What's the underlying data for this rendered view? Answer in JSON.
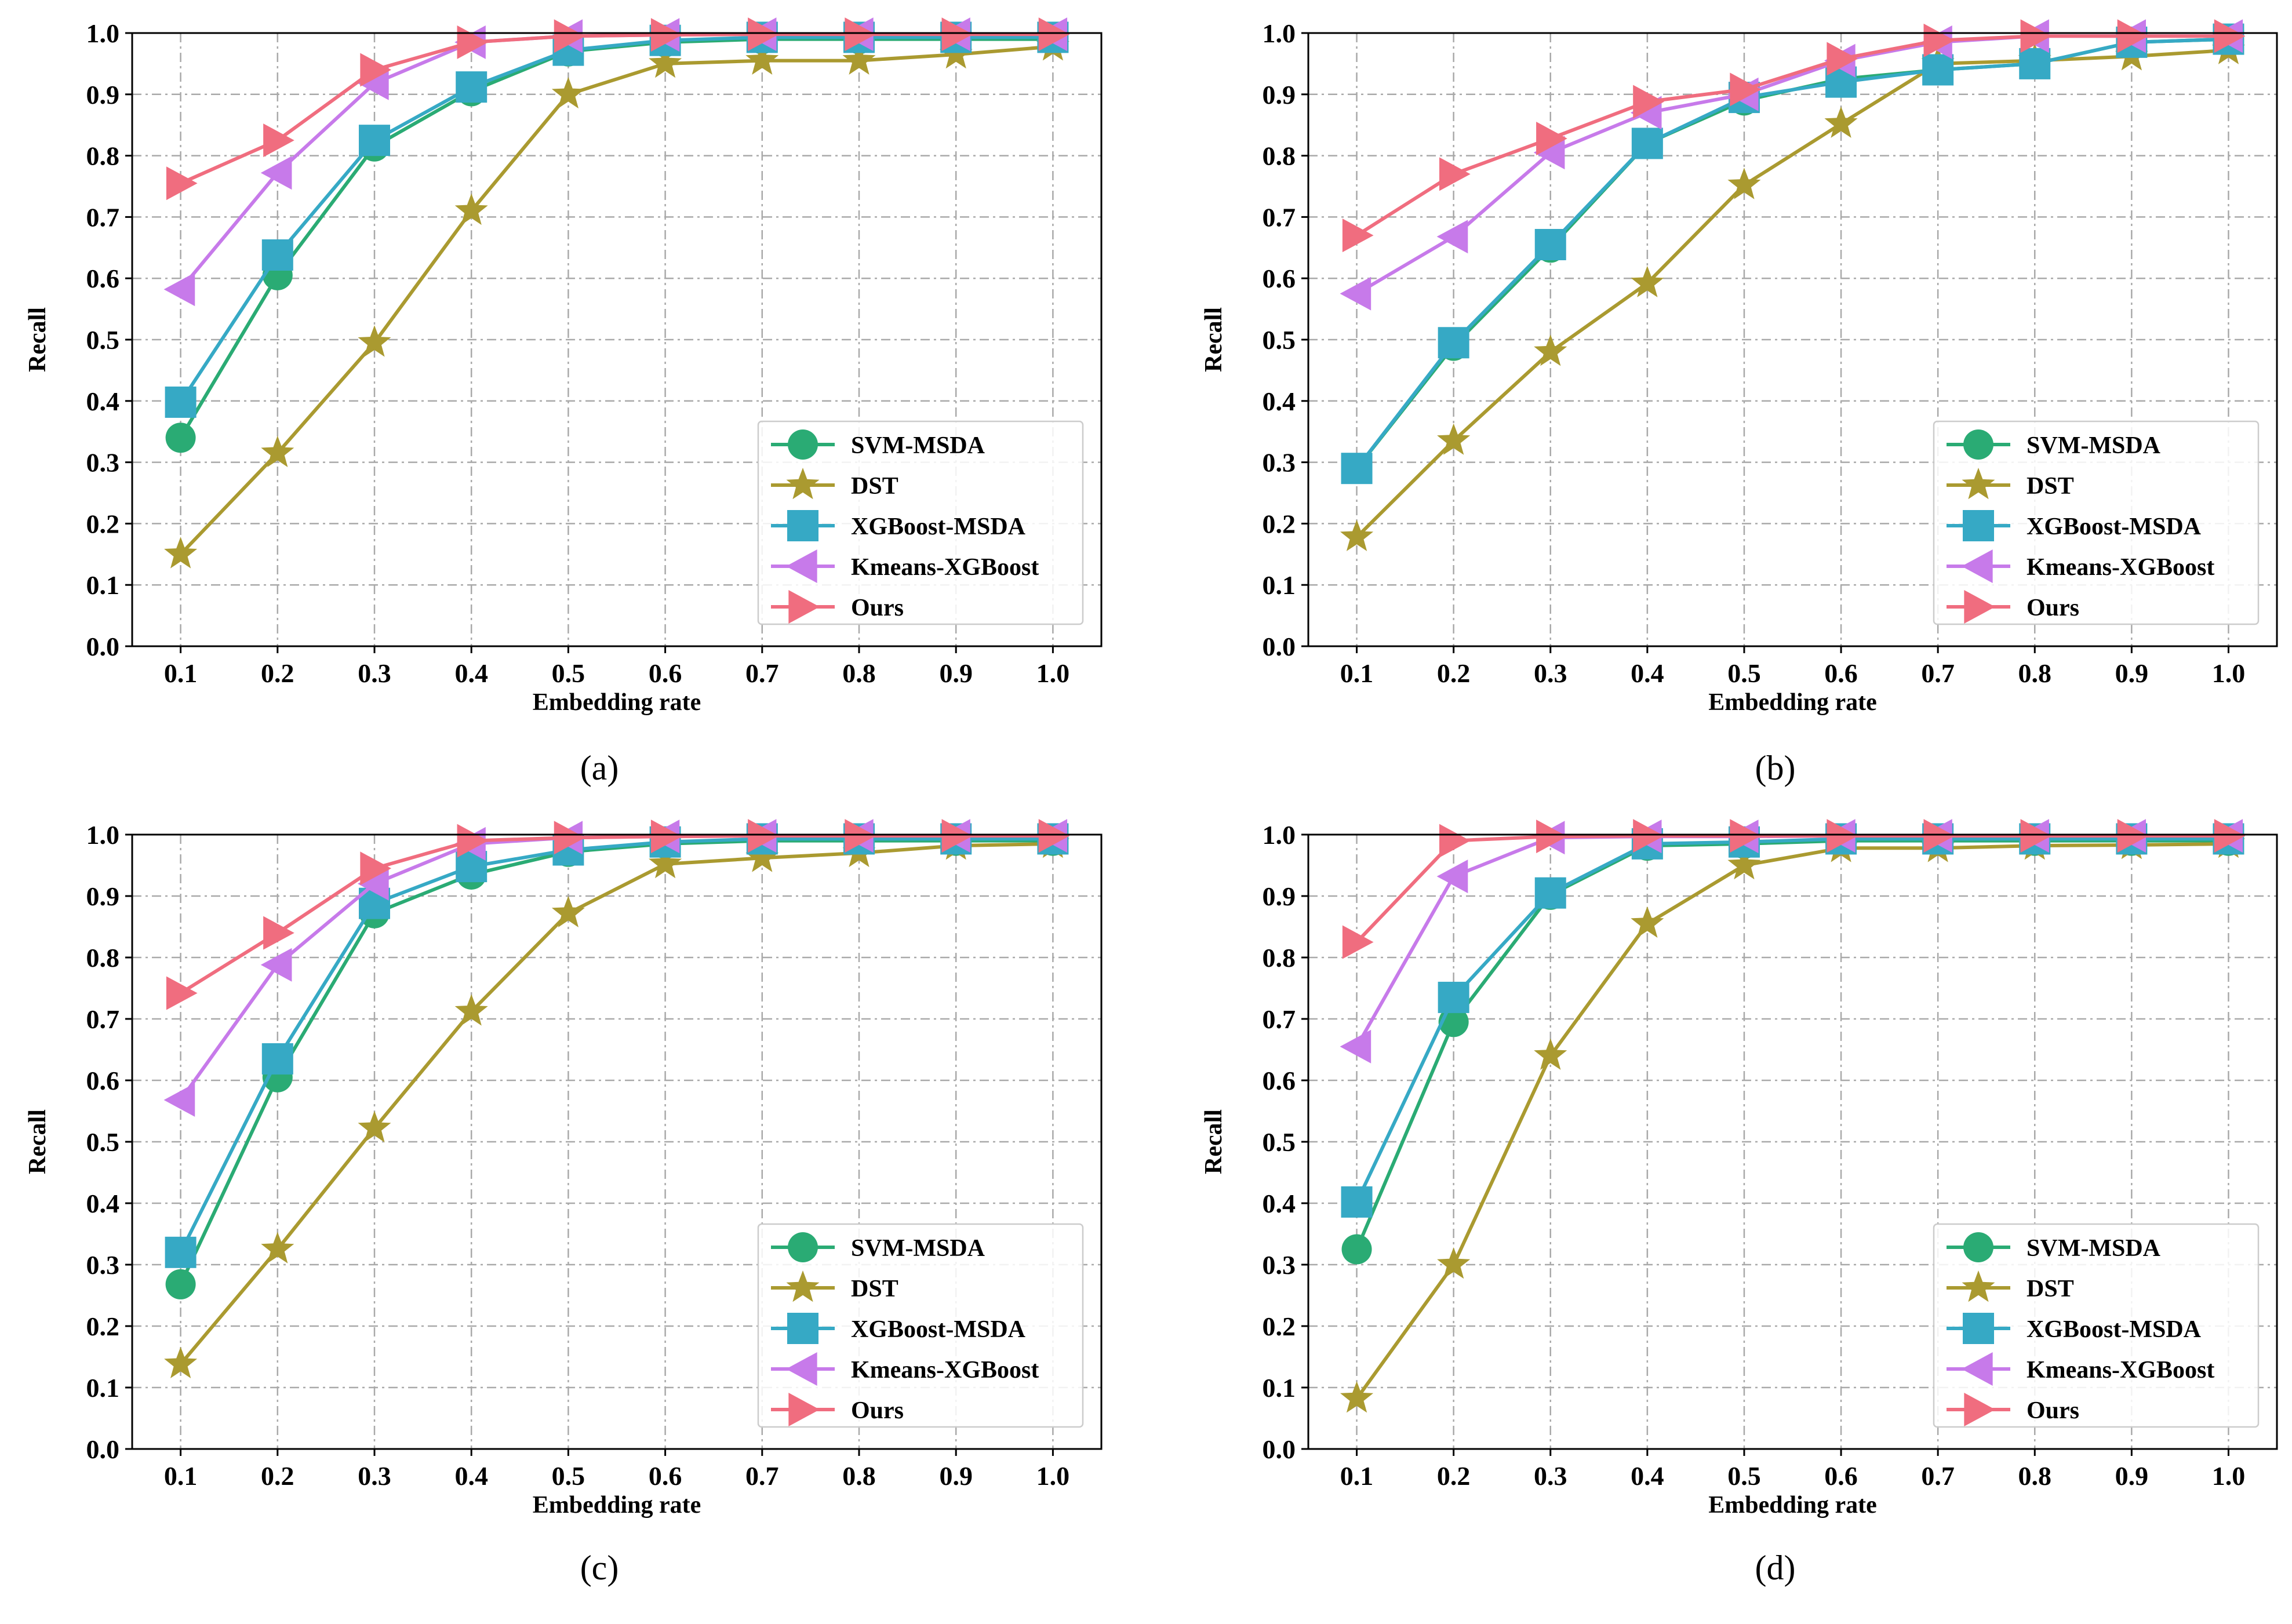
{
  "colors": {
    "SVM-MSDA": "#2aab74",
    "DST": "#aa9a30",
    "XGBoost-MSDA": "#36a9c5",
    "Kmeans-XGBoost": "#c77aea",
    "Ours": "#f06d7f"
  },
  "markers": {
    "SVM-MSDA": "circle",
    "DST": "star",
    "XGBoost-MSDA": "square",
    "Kmeans-XGBoost": "triangle-left",
    "Ours": "triangle-right"
  },
  "chart_data": [
    {
      "caption": "(a)",
      "type": "line",
      "xlabel": "Embedding rate",
      "ylabel": "Recall",
      "x": [
        0.1,
        0.2,
        0.3,
        0.4,
        0.5,
        0.6,
        0.7,
        0.8,
        0.9,
        1.0
      ],
      "x_tick_labels": [
        "0.1",
        "0.2",
        "0.3",
        "0.4",
        "0.5",
        "0.6",
        "0.7",
        "0.8",
        "0.9",
        "1.0"
      ],
      "y_tick_labels": [
        "0.0",
        "0.1",
        "0.2",
        "0.3",
        "0.4",
        "0.5",
        "0.6",
        "0.7",
        "0.8",
        "0.9",
        "1.0"
      ],
      "xlim": [
        0.05,
        1.05
      ],
      "ylim": [
        0.0,
        1.0
      ],
      "grid": true,
      "legend_position": "lower-right",
      "series": [
        {
          "name": "SVM-MSDA",
          "values": [
            0.34,
            0.605,
            0.815,
            0.905,
            0.97,
            0.985,
            0.99,
            0.99,
            0.99,
            0.99
          ]
        },
        {
          "name": "DST",
          "values": [
            0.15,
            0.315,
            0.495,
            0.71,
            0.9,
            0.95,
            0.955,
            0.955,
            0.965,
            0.978
          ]
        },
        {
          "name": "XGBoost-MSDA",
          "values": [
            0.398,
            0.638,
            0.825,
            0.912,
            0.972,
            0.988,
            0.993,
            0.993,
            0.993,
            0.993
          ]
        },
        {
          "name": "Kmeans-XGBoost",
          "values": [
            0.582,
            0.772,
            0.918,
            0.985,
            0.995,
            0.997,
            0.998,
            0.998,
            0.998,
            0.998
          ]
        },
        {
          "name": "Ours",
          "values": [
            0.755,
            0.825,
            0.94,
            0.985,
            0.995,
            0.997,
            0.998,
            0.998,
            0.998,
            0.998
          ]
        }
      ]
    },
    {
      "caption": "(b)",
      "type": "line",
      "xlabel": "Embedding rate",
      "ylabel": "Recall",
      "x": [
        0.1,
        0.2,
        0.3,
        0.4,
        0.5,
        0.6,
        0.7,
        0.8,
        0.9,
        1.0
      ],
      "x_tick_labels": [
        "0.1",
        "0.2",
        "0.3",
        "0.4",
        "0.5",
        "0.6",
        "0.7",
        "0.8",
        "0.9",
        "1.0"
      ],
      "y_tick_labels": [
        "0.0",
        "0.1",
        "0.2",
        "0.3",
        "0.4",
        "0.5",
        "0.6",
        "0.7",
        "0.8",
        "0.9",
        "1.0"
      ],
      "xlim": [
        0.05,
        1.05
      ],
      "ylim": [
        0.0,
        1.0
      ],
      "grid": true,
      "legend_position": "lower-right",
      "series": [
        {
          "name": "SVM-MSDA",
          "values": [
            0.29,
            0.49,
            0.65,
            0.82,
            0.89,
            0.925,
            0.94,
            0.95,
            0.985,
            0.99
          ]
        },
        {
          "name": "DST",
          "values": [
            0.178,
            0.335,
            0.48,
            0.592,
            0.752,
            0.852,
            0.95,
            0.955,
            0.962,
            0.972
          ]
        },
        {
          "name": "XGBoost-MSDA",
          "values": [
            0.29,
            0.495,
            0.655,
            0.82,
            0.895,
            0.92,
            0.94,
            0.95,
            0.985,
            0.99
          ]
        },
        {
          "name": "Kmeans-XGBoost",
          "values": [
            0.575,
            0.668,
            0.805,
            0.87,
            0.9,
            0.955,
            0.985,
            0.995,
            0.995,
            0.995
          ]
        },
        {
          "name": "Ours",
          "values": [
            0.67,
            0.77,
            0.828,
            0.888,
            0.908,
            0.958,
            0.988,
            0.995,
            0.995,
            0.995
          ]
        }
      ]
    },
    {
      "caption": "(c)",
      "type": "line",
      "xlabel": "Embedding rate",
      "ylabel": "Recall",
      "x": [
        0.1,
        0.2,
        0.3,
        0.4,
        0.5,
        0.6,
        0.7,
        0.8,
        0.9,
        1.0
      ],
      "x_tick_labels": [
        "0.1",
        "0.2",
        "0.3",
        "0.4",
        "0.5",
        "0.6",
        "0.7",
        "0.8",
        "0.9",
        "1.0"
      ],
      "y_tick_labels": [
        "0.0",
        "0.1",
        "0.2",
        "0.3",
        "0.4",
        "0.5",
        "0.6",
        "0.7",
        "0.8",
        "0.9",
        "1.0"
      ],
      "xlim": [
        0.05,
        1.05
      ],
      "ylim": [
        0.0,
        1.0
      ],
      "grid": true,
      "legend_position": "lower-right",
      "series": [
        {
          "name": "SVM-MSDA",
          "values": [
            0.268,
            0.605,
            0.872,
            0.935,
            0.972,
            0.985,
            0.99,
            0.99,
            0.99,
            0.99
          ]
        },
        {
          "name": "DST",
          "values": [
            0.138,
            0.325,
            0.522,
            0.712,
            0.872,
            0.952,
            0.962,
            0.97,
            0.982,
            0.985
          ]
        },
        {
          "name": "XGBoost-MSDA",
          "values": [
            0.32,
            0.635,
            0.888,
            0.948,
            0.975,
            0.988,
            0.993,
            0.993,
            0.993,
            0.993
          ]
        },
        {
          "name": "Kmeans-XGBoost",
          "values": [
            0.568,
            0.788,
            0.92,
            0.985,
            0.995,
            0.997,
            0.998,
            0.998,
            0.998,
            0.998
          ]
        },
        {
          "name": "Ours",
          "values": [
            0.742,
            0.84,
            0.945,
            0.99,
            0.995,
            0.997,
            0.998,
            0.998,
            0.998,
            0.998
          ]
        }
      ]
    },
    {
      "caption": "(d)",
      "type": "line",
      "xlabel": "Embedding rate",
      "ylabel": "Recall",
      "x": [
        0.1,
        0.2,
        0.3,
        0.4,
        0.5,
        0.6,
        0.7,
        0.8,
        0.9,
        1.0
      ],
      "x_tick_labels": [
        "0.1",
        "0.2",
        "0.3",
        "0.4",
        "0.5",
        "0.6",
        "0.7",
        "0.8",
        "0.9",
        "1.0"
      ],
      "y_tick_labels": [
        "0.0",
        "0.1",
        "0.2",
        "0.3",
        "0.4",
        "0.5",
        "0.6",
        "0.7",
        "0.8",
        "0.9",
        "1.0"
      ],
      "xlim": [
        0.05,
        1.05
      ],
      "ylim": [
        0.0,
        1.0
      ],
      "grid": true,
      "legend_position": "lower-right",
      "series": [
        {
          "name": "SVM-MSDA",
          "values": [
            0.325,
            0.695,
            0.902,
            0.982,
            0.985,
            0.99,
            0.99,
            0.99,
            0.99,
            0.99
          ]
        },
        {
          "name": "DST",
          "values": [
            0.082,
            0.3,
            0.64,
            0.855,
            0.95,
            0.978,
            0.978,
            0.982,
            0.983,
            0.985
          ]
        },
        {
          "name": "XGBoost-MSDA",
          "values": [
            0.402,
            0.735,
            0.905,
            0.985,
            0.988,
            0.993,
            0.993,
            0.993,
            0.993,
            0.993
          ]
        },
        {
          "name": "Kmeans-XGBoost",
          "values": [
            0.655,
            0.932,
            0.995,
            0.997,
            0.997,
            0.998,
            0.998,
            0.998,
            0.998,
            0.998
          ]
        },
        {
          "name": "Ours",
          "values": [
            0.825,
            0.99,
            0.997,
            0.998,
            0.998,
            0.998,
            0.998,
            0.998,
            0.998,
            0.998
          ]
        }
      ]
    }
  ]
}
